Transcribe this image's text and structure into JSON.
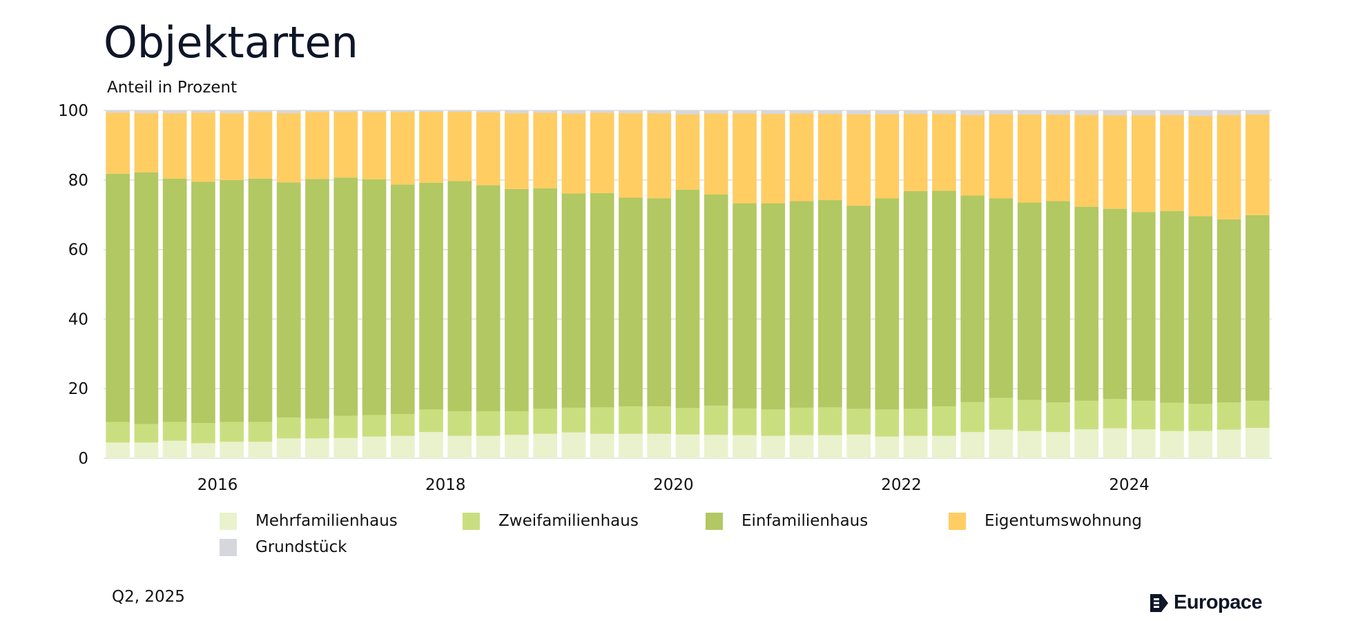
{
  "page": {
    "title": "Objektarten",
    "subtitle": "Anteil in Prozent",
    "footnote": "Q2, 2025",
    "logo_text": "Europace"
  },
  "colors": {
    "Mehrfamilienhaus": "#e9f2cd",
    "Zweifamilienhaus": "#c9df7f",
    "Einfamilienhaus": "#b2c862",
    "Eigentumswohnung": "#ffcd62",
    "Grundstück": "#d6d6dd",
    "grid": "#dddddd",
    "title": "#0e1628"
  },
  "chart_data": {
    "type": "bar",
    "stacked": true,
    "x_tick_labels": [
      "2016",
      "2018",
      "2020",
      "2022",
      "2024"
    ],
    "y_ticks": [
      0,
      20,
      40,
      60,
      80,
      100
    ],
    "ylim": [
      0,
      100
    ],
    "grid": true,
    "legend_position": "bottom",
    "categories": [
      "Q1 2015",
      "Q2 2015",
      "Q3 2015",
      "Q4 2015",
      "Q1 2016",
      "Q2 2016",
      "Q3 2016",
      "Q4 2016",
      "Q1 2017",
      "Q2 2017",
      "Q3 2017",
      "Q4 2017",
      "Q1 2018",
      "Q2 2018",
      "Q3 2018",
      "Q4 2018",
      "Q1 2019",
      "Q2 2019",
      "Q3 2019",
      "Q4 2019",
      "Q1 2020",
      "Q2 2020",
      "Q3 2020",
      "Q4 2020",
      "Q1 2021",
      "Q2 2021",
      "Q3 2021",
      "Q4 2021",
      "Q1 2022",
      "Q2 2022",
      "Q3 2022",
      "Q4 2022",
      "Q1 2023",
      "Q2 2023",
      "Q3 2023",
      "Q4 2023",
      "Q1 2024",
      "Q2 2024",
      "Q3 2024",
      "Q4 2024",
      "Q1 2025"
    ],
    "series": [
      {
        "name": "Mehrfamilienhaus",
        "values": [
          4.5,
          4.5,
          5.0,
          4.3,
          4.7,
          4.7,
          5.7,
          5.7,
          5.8,
          6.2,
          6.4,
          7.5,
          6.4,
          6.4,
          6.7,
          7.0,
          7.4,
          7.0,
          7.0,
          7.0,
          6.8,
          6.7,
          6.6,
          6.4,
          6.6,
          6.6,
          6.8,
          6.2,
          6.4,
          6.4,
          7.5,
          8.2,
          7.8,
          7.5,
          8.3,
          8.6,
          8.3,
          7.8,
          7.8,
          8.2,
          8.7
        ]
      },
      {
        "name": "Zweifamilienhaus",
        "values": [
          5.9,
          5.3,
          5.4,
          5.8,
          5.7,
          5.7,
          6.0,
          5.7,
          6.4,
          6.2,
          6.3,
          6.5,
          7.1,
          7.1,
          6.8,
          7.2,
          7.1,
          7.6,
          7.9,
          7.9,
          7.6,
          8.4,
          7.7,
          7.6,
          7.9,
          8.0,
          7.4,
          7.8,
          7.8,
          8.5,
          8.6,
          9.1,
          8.9,
          8.5,
          8.2,
          8.4,
          8.2,
          8.1,
          7.8,
          7.8,
          7.8
        ]
      },
      {
        "name": "Einfamilienhaus",
        "values": [
          71.4,
          72.4,
          70.0,
          69.4,
          69.6,
          70.0,
          67.6,
          68.9,
          68.5,
          67.8,
          66.0,
          65.2,
          66.2,
          65.0,
          63.9,
          63.4,
          61.6,
          61.6,
          60.0,
          59.8,
          62.8,
          60.7,
          59.0,
          59.3,
          59.4,
          59.6,
          58.4,
          60.7,
          62.6,
          62.0,
          59.4,
          57.4,
          56.8,
          57.9,
          55.8,
          54.7,
          54.3,
          55.2,
          54.0,
          52.7,
          53.4
        ]
      },
      {
        "name": "Eigentumswohnung",
        "values": [
          17.5,
          17.0,
          18.8,
          19.8,
          19.2,
          19.1,
          19.9,
          19.2,
          18.8,
          19.3,
          20.8,
          20.4,
          19.9,
          20.9,
          21.8,
          21.7,
          23.0,
          23.1,
          24.3,
          24.5,
          21.7,
          23.3,
          25.8,
          25.7,
          25.2,
          24.8,
          26.3,
          24.2,
          22.2,
          22.1,
          23.2,
          24.2,
          25.3,
          24.9,
          26.4,
          26.9,
          27.8,
          27.6,
          28.8,
          30.0,
          28.9
        ]
      },
      {
        "name": "Grundstück",
        "values": [
          0.7,
          0.8,
          0.8,
          0.7,
          0.8,
          0.5,
          0.8,
          0.5,
          0.5,
          0.5,
          0.5,
          0.4,
          0.4,
          0.6,
          0.8,
          0.7,
          0.9,
          0.7,
          0.8,
          0.8,
          1.1,
          0.9,
          0.9,
          1.0,
          0.9,
          1.0,
          1.1,
          1.1,
          1.0,
          1.0,
          1.3,
          1.1,
          1.2,
          1.2,
          1.3,
          1.4,
          1.4,
          1.3,
          1.6,
          1.3,
          1.2
        ]
      }
    ]
  }
}
